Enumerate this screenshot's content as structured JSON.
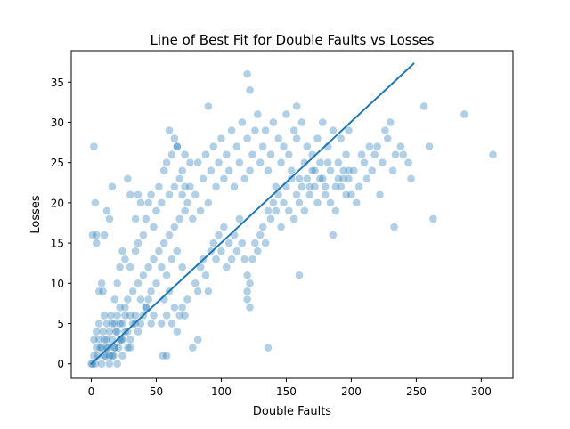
{
  "chart_data": {
    "type": "scatter",
    "title": "Line of Best Fit for Double Faults vs Losses",
    "xlabel": "Double Faults",
    "ylabel": "Losses",
    "xlim": [
      -15.4,
      324.4
    ],
    "ylim": [
      -1.8,
      38.9
    ],
    "xticks": [
      0,
      50,
      100,
      150,
      200,
      250,
      300
    ],
    "yticks": [
      0,
      5,
      10,
      15,
      20,
      25,
      30,
      35
    ],
    "grid": false,
    "legend": "none",
    "colors": {
      "points": "#1f77b4",
      "line": "#1f77b4",
      "point_opacity": 0.35
    },
    "fit_line": {
      "x": [
        0,
        248
      ],
      "y": [
        0,
        37.3
      ]
    },
    "series": [
      {
        "points": [
          [
            0,
            0
          ],
          [
            1,
            0
          ],
          [
            2,
            1
          ],
          [
            3,
            0
          ],
          [
            4,
            2
          ],
          [
            5,
            1
          ],
          [
            6,
            3
          ],
          [
            7,
            2
          ],
          [
            8,
            0
          ],
          [
            9,
            4
          ],
          [
            10,
            3
          ],
          [
            11,
            1
          ],
          [
            12,
            5
          ],
          [
            13,
            2
          ],
          [
            14,
            4
          ],
          [
            15,
            6
          ],
          [
            16,
            3
          ],
          [
            17,
            1
          ],
          [
            18,
            5
          ],
          [
            19,
            4
          ],
          [
            20,
            6
          ],
          [
            21,
            2
          ],
          [
            22,
            7
          ],
          [
            23,
            3
          ],
          [
            24,
            5
          ],
          [
            2,
            3
          ],
          [
            4,
            4
          ],
          [
            6,
            5
          ],
          [
            8,
            2
          ],
          [
            10,
            6
          ],
          [
            12,
            3
          ],
          [
            14,
            1
          ],
          [
            16,
            5
          ],
          [
            18,
            2
          ],
          [
            20,
            4
          ],
          [
            22,
            5
          ],
          [
            24,
            3
          ],
          [
            26,
            6
          ],
          [
            28,
            4
          ],
          [
            30,
            2
          ],
          [
            1,
            16
          ],
          [
            4,
            16
          ],
          [
            2,
            27
          ],
          [
            3,
            20
          ],
          [
            8,
            10
          ],
          [
            10,
            16
          ],
          [
            12,
            19
          ],
          [
            9,
            9
          ],
          [
            14,
            18
          ],
          [
            16,
            22
          ],
          [
            6,
            9
          ],
          [
            4,
            15
          ],
          [
            26,
            7
          ],
          [
            28,
            8
          ],
          [
            30,
            6
          ],
          [
            32,
            9
          ],
          [
            34,
            5
          ],
          [
            36,
            10
          ],
          [
            38,
            8
          ],
          [
            40,
            11
          ],
          [
            42,
            7
          ],
          [
            44,
            12
          ],
          [
            46,
            9
          ],
          [
            48,
            13
          ],
          [
            50,
            10
          ],
          [
            52,
            14
          ],
          [
            54,
            12
          ],
          [
            56,
            15
          ],
          [
            58,
            11
          ],
          [
            60,
            16
          ],
          [
            62,
            13
          ],
          [
            64,
            17
          ],
          [
            66,
            14
          ],
          [
            68,
            18
          ],
          [
            70,
            12
          ],
          [
            72,
            19
          ],
          [
            30,
            12
          ],
          [
            34,
            14
          ],
          [
            36,
            15
          ],
          [
            40,
            16
          ],
          [
            42,
            18
          ],
          [
            44,
            20
          ],
          [
            46,
            21
          ],
          [
            48,
            17
          ],
          [
            50,
            19
          ],
          [
            52,
            22
          ],
          [
            54,
            20
          ],
          [
            56,
            24
          ],
          [
            58,
            25
          ],
          [
            60,
            21
          ],
          [
            62,
            26
          ],
          [
            64,
            22
          ],
          [
            66,
            27
          ],
          [
            68,
            23
          ],
          [
            70,
            24
          ],
          [
            72,
            26
          ],
          [
            28,
            23
          ],
          [
            30,
            21
          ],
          [
            34,
            18
          ],
          [
            36,
            21
          ],
          [
            38,
            20
          ],
          [
            24,
            14
          ],
          [
            26,
            13
          ],
          [
            22,
            12
          ],
          [
            20,
            10
          ],
          [
            18,
            8
          ],
          [
            74,
            20
          ],
          [
            76,
            22
          ],
          [
            78,
            18
          ],
          [
            80,
            21
          ],
          [
            82,
            25
          ],
          [
            84,
            19
          ],
          [
            86,
            23
          ],
          [
            88,
            26
          ],
          [
            90,
            20
          ],
          [
            92,
            24
          ],
          [
            94,
            27
          ],
          [
            96,
            22
          ],
          [
            98,
            25
          ],
          [
            100,
            28
          ],
          [
            102,
            23
          ],
          [
            104,
            26
          ],
          [
            106,
            24
          ],
          [
            108,
            29
          ],
          [
            110,
            22
          ],
          [
            112,
            27
          ],
          [
            114,
            25
          ],
          [
            116,
            30
          ],
          [
            118,
            23
          ],
          [
            120,
            28
          ],
          [
            122,
            24
          ],
          [
            124,
            26
          ],
          [
            126,
            29
          ],
          [
            128,
            31
          ],
          [
            130,
            25
          ],
          [
            132,
            27
          ],
          [
            134,
            29
          ],
          [
            136,
            24
          ],
          [
            138,
            26
          ],
          [
            140,
            30
          ],
          [
            142,
            22
          ],
          [
            144,
            28
          ],
          [
            146,
            25
          ],
          [
            148,
            27
          ],
          [
            150,
            31
          ],
          [
            152,
            26
          ],
          [
            154,
            24
          ],
          [
            156,
            29
          ],
          [
            158,
            28
          ],
          [
            160,
            23
          ],
          [
            162,
            30
          ],
          [
            164,
            25
          ],
          [
            166,
            27
          ],
          [
            168,
            22
          ],
          [
            170,
            26
          ],
          [
            172,
            24
          ],
          [
            174,
            28
          ],
          [
            176,
            23
          ],
          [
            178,
            30
          ],
          [
            180,
            21
          ],
          [
            182,
            27
          ],
          [
            184,
            24
          ],
          [
            186,
            29
          ],
          [
            188,
            22
          ],
          [
            190,
            25
          ],
          [
            192,
            28
          ],
          [
            194,
            23
          ],
          [
            196,
            26
          ],
          [
            198,
            24
          ],
          [
            200,
            21
          ],
          [
            202,
            24
          ],
          [
            204,
            20
          ],
          [
            206,
            22
          ],
          [
            208,
            26
          ],
          [
            210,
            25
          ],
          [
            212,
            23
          ],
          [
            214,
            27
          ],
          [
            216,
            24
          ],
          [
            218,
            26
          ],
          [
            220,
            27
          ],
          [
            222,
            21
          ],
          [
            224,
            25
          ],
          [
            226,
            29
          ],
          [
            228,
            28
          ],
          [
            230,
            30
          ],
          [
            232,
            24
          ],
          [
            234,
            26
          ],
          [
            238,
            27
          ],
          [
            240,
            26
          ],
          [
            244,
            25
          ],
          [
            246,
            23
          ],
          [
            256,
            32
          ],
          [
            260,
            27
          ],
          [
            263,
            18
          ],
          [
            287,
            31
          ],
          [
            309,
            26
          ],
          [
            233,
            17
          ],
          [
            198,
            29
          ],
          [
            120,
            36
          ],
          [
            122,
            34
          ],
          [
            90,
            32
          ],
          [
            158,
            32
          ],
          [
            60,
            29
          ],
          [
            64,
            28
          ],
          [
            66,
            27
          ],
          [
            70,
            21
          ],
          [
            72,
            22
          ],
          [
            76,
            25
          ],
          [
            80,
            10
          ],
          [
            82,
            9
          ],
          [
            84,
            12
          ],
          [
            86,
            13
          ],
          [
            88,
            11
          ],
          [
            90,
            9
          ],
          [
            92,
            14
          ],
          [
            94,
            15
          ],
          [
            96,
            13
          ],
          [
            98,
            16
          ],
          [
            100,
            14
          ],
          [
            102,
            17
          ],
          [
            104,
            12
          ],
          [
            106,
            15
          ],
          [
            108,
            13
          ],
          [
            110,
            16
          ],
          [
            112,
            14
          ],
          [
            114,
            18
          ],
          [
            116,
            15
          ],
          [
            118,
            13
          ],
          [
            120,
            11
          ],
          [
            122,
            10
          ],
          [
            124,
            13
          ],
          [
            126,
            15
          ],
          [
            128,
            14
          ],
          [
            130,
            16
          ],
          [
            132,
            17
          ],
          [
            134,
            15
          ],
          [
            136,
            19
          ],
          [
            138,
            18
          ],
          [
            140,
            20
          ],
          [
            142,
            19
          ],
          [
            144,
            21
          ],
          [
            146,
            17
          ],
          [
            148,
            20
          ],
          [
            150,
            22
          ],
          [
            152,
            19
          ],
          [
            154,
            23
          ],
          [
            156,
            18
          ],
          [
            158,
            21
          ],
          [
            160,
            20
          ],
          [
            162,
            22
          ],
          [
            164,
            19
          ],
          [
            166,
            23
          ],
          [
            168,
            21
          ],
          [
            170,
            24
          ],
          [
            172,
            22
          ],
          [
            174,
            20
          ],
          [
            176,
            25
          ],
          [
            178,
            23
          ],
          [
            180,
            22
          ],
          [
            182,
            25
          ],
          [
            184,
            20
          ],
          [
            186,
            16
          ],
          [
            188,
            19
          ],
          [
            190,
            23
          ],
          [
            192,
            22
          ],
          [
            194,
            24
          ],
          [
            196,
            21
          ],
          [
            198,
            23
          ],
          [
            120,
            9
          ],
          [
            120,
            8
          ],
          [
            122,
            7
          ],
          [
            136,
            2
          ],
          [
            160,
            11
          ],
          [
            78,
            2
          ],
          [
            55,
            1
          ],
          [
            58,
            1
          ],
          [
            82,
            3
          ],
          [
            68,
            6
          ],
          [
            70,
            7
          ],
          [
            72,
            6
          ],
          [
            74,
            8
          ],
          [
            66,
            4
          ],
          [
            62,
            5
          ],
          [
            64,
            7
          ],
          [
            58,
            6
          ],
          [
            60,
            9
          ],
          [
            56,
            8
          ],
          [
            54,
            5
          ],
          [
            48,
            6
          ],
          [
            46,
            5
          ],
          [
            44,
            8
          ],
          [
            42,
            7
          ],
          [
            40,
            6
          ],
          [
            38,
            5
          ],
          [
            36,
            4
          ],
          [
            34,
            6
          ],
          [
            32,
            5
          ],
          [
            30,
            3
          ],
          [
            28,
            2
          ],
          [
            26,
            4
          ],
          [
            24,
            1
          ],
          [
            22,
            3
          ],
          [
            20,
            0
          ],
          [
            18,
            2
          ],
          [
            16,
            1
          ],
          [
            14,
            0
          ],
          [
            12,
            2
          ],
          [
            10,
            1
          ]
        ]
      }
    ]
  }
}
